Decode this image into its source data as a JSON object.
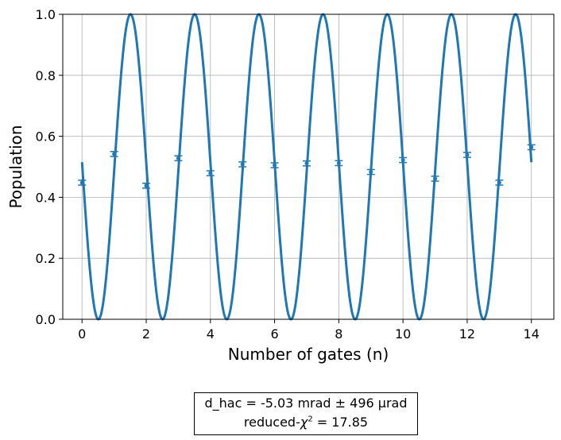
{
  "chart_data": {
    "type": "scatter",
    "xlabel": "Number of gates (n)",
    "ylabel": "Population",
    "xlim": [
      -0.6,
      14.7
    ],
    "ylim": [
      0.0,
      1.0
    ],
    "xticks": [
      "0",
      "2",
      "4",
      "6",
      "8",
      "10",
      "12",
      "14"
    ],
    "xtick_values": [
      0,
      2,
      4,
      6,
      8,
      10,
      12,
      14
    ],
    "yticks": [
      "0.0",
      "0.2",
      "0.4",
      "0.6",
      "0.8",
      "1.0"
    ],
    "ytick_values": [
      0.0,
      0.2,
      0.4,
      0.6,
      0.8,
      1.0
    ],
    "grid": true,
    "series": [
      {
        "kind": "errorbar",
        "color": "#1f77b4",
        "x": [
          0,
          1,
          2,
          3,
          4,
          5,
          6,
          7,
          8,
          9,
          10,
          11,
          12,
          13,
          14
        ],
        "y": [
          0.448,
          0.542,
          0.438,
          0.528,
          0.479,
          0.508,
          0.505,
          0.511,
          0.512,
          0.483,
          0.522,
          0.461,
          0.539,
          0.448,
          0.564
        ],
        "yerr": [
          0.008,
          0.008,
          0.008,
          0.008,
          0.008,
          0.008,
          0.008,
          0.008,
          0.008,
          0.008,
          0.008,
          0.008,
          0.008,
          0.008,
          0.008
        ]
      },
      {
        "kind": "line",
        "color": "#1f77b4",
        "model": "0.5 - 0.5*sin(pi*n + phase)",
        "phase_rad": -0.03,
        "x_range": [
          0,
          14
        ]
      }
    ]
  },
  "fit_box": {
    "line1": "d_hac =  -5.03 mrad ±  496 μrad",
    "line2_prefix": "reduced-",
    "line2_chi": "χ",
    "line2_sup": "2",
    "line2_suffix": " =  17.85"
  }
}
